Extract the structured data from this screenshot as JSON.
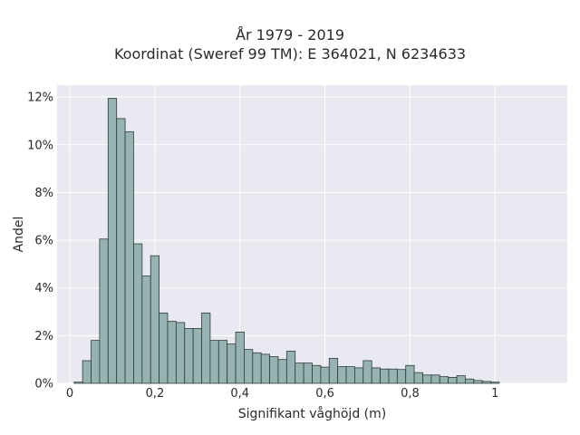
{
  "chart_data": {
    "type": "bar",
    "title": "År 1979 - 2019",
    "subtitle": "Koordinat (Sweref 99 TM): E 364021, N 6234633",
    "xlabel": "Signifikant våghöjd (m)",
    "ylabel": "Andel",
    "xlim": [
      -0.03,
      1.17
    ],
    "ylim": [
      0,
      12.5
    ],
    "x_ticks": [
      {
        "value": 0,
        "label": "0"
      },
      {
        "value": 0.2,
        "label": "0,2"
      },
      {
        "value": 0.4,
        "label": "0,4"
      },
      {
        "value": 0.6,
        "label": "0,6"
      },
      {
        "value": 0.8,
        "label": "0,8"
      },
      {
        "value": 1.0,
        "label": "1"
      }
    ],
    "y_ticks": [
      {
        "value": 0,
        "label": "0%"
      },
      {
        "value": 2,
        "label": "2%"
      },
      {
        "value": 4,
        "label": "4%"
      },
      {
        "value": 6,
        "label": "6%"
      },
      {
        "value": 8,
        "label": "8%"
      },
      {
        "value": 10,
        "label": "10%"
      },
      {
        "value": 12,
        "label": "12%"
      }
    ],
    "grid": true,
    "bin_width": 0.02,
    "bin_start": 0.01,
    "values": [
      0.05,
      0.95,
      1.8,
      6.05,
      11.95,
      11.1,
      10.55,
      5.85,
      4.5,
      5.35,
      2.95,
      2.6,
      2.55,
      2.3,
      2.3,
      2.95,
      1.8,
      1.8,
      1.65,
      2.15,
      1.42,
      1.28,
      1.22,
      1.12,
      1.0,
      1.35,
      0.85,
      0.85,
      0.75,
      0.68,
      1.05,
      0.7,
      0.7,
      0.65,
      0.95,
      0.65,
      0.6,
      0.6,
      0.58,
      0.75,
      0.45,
      0.35,
      0.35,
      0.28,
      0.25,
      0.32,
      0.18,
      0.12,
      0.08,
      0.05
    ],
    "colors": {
      "plot_bg": "#e9e9f1",
      "bar_fill": "#97b3b1",
      "bar_stroke": "#2e3b3a",
      "grid": "#ffffff"
    }
  }
}
